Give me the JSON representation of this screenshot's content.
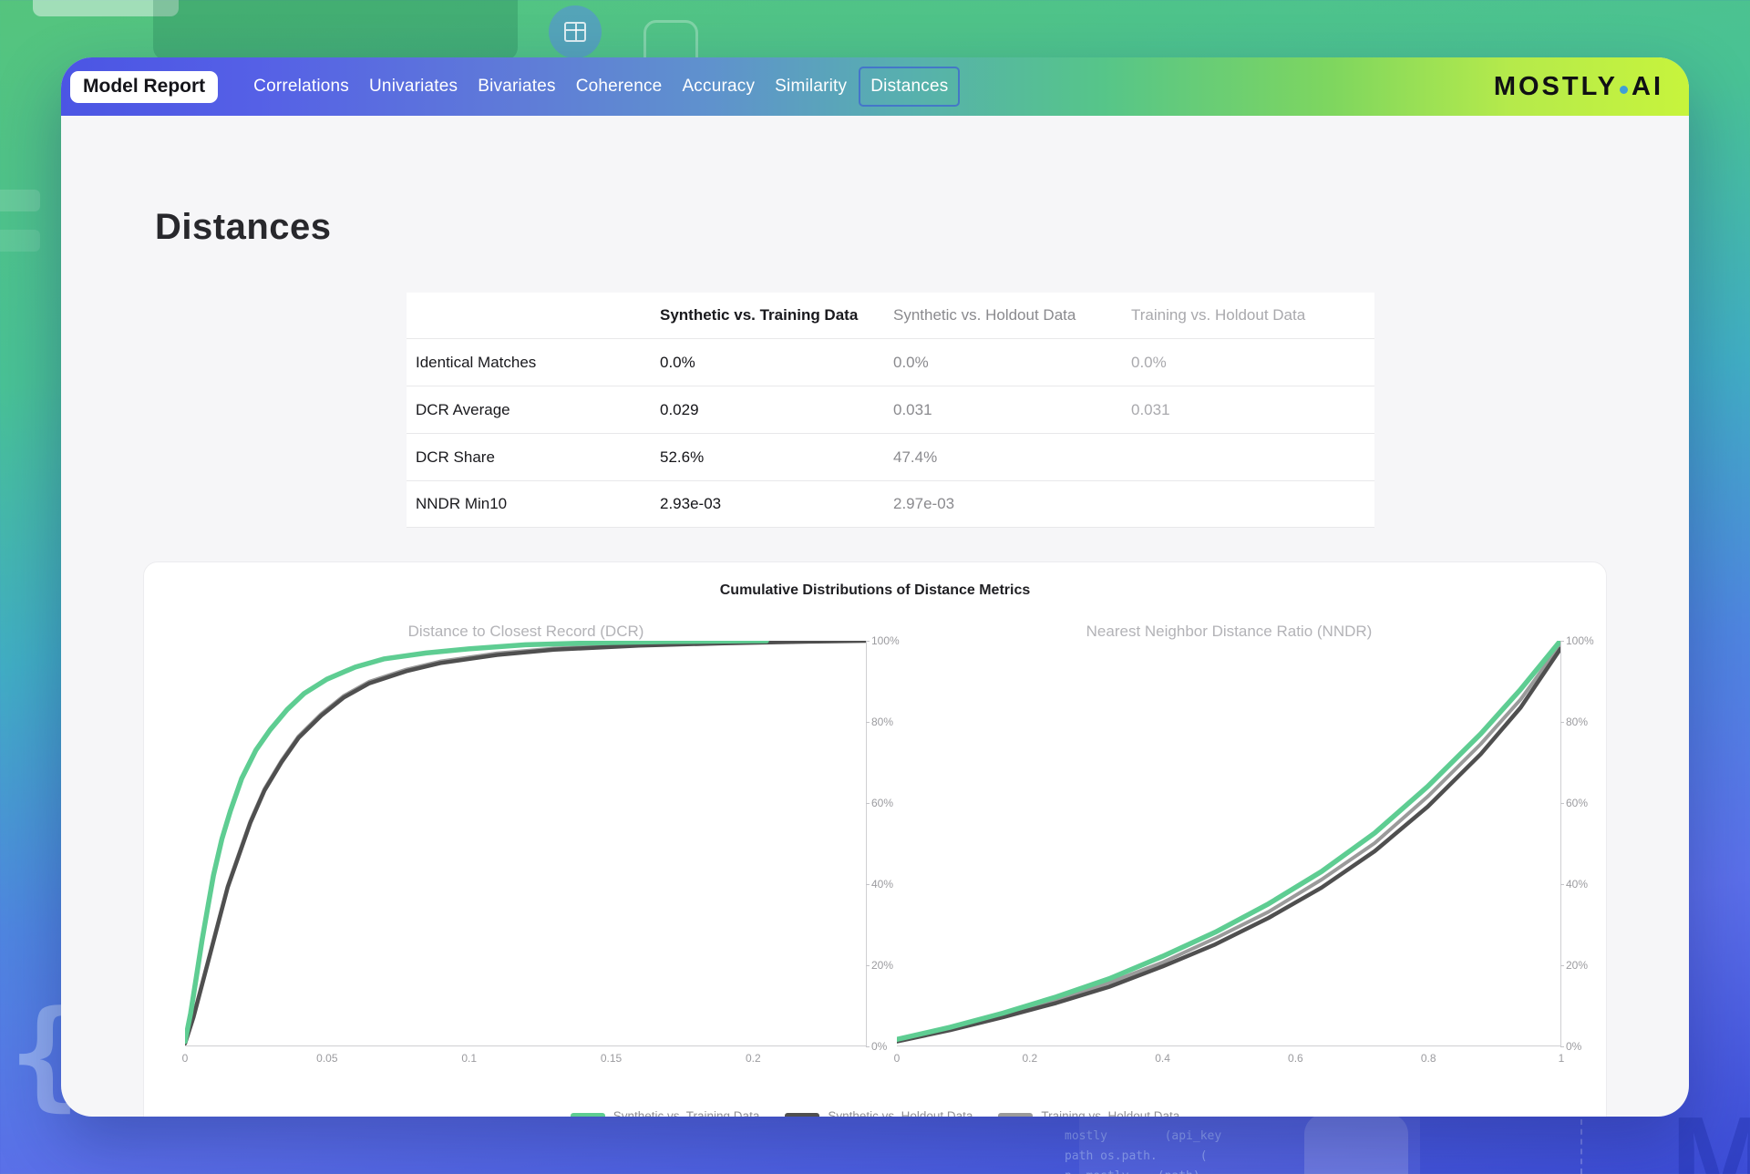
{
  "nav": {
    "badge": "Model Report",
    "tabs": [
      {
        "label": "Correlations",
        "active": false
      },
      {
        "label": "Univariates",
        "active": false
      },
      {
        "label": "Bivariates",
        "active": false
      },
      {
        "label": "Coherence",
        "active": false
      },
      {
        "label": "Accuracy",
        "active": false
      },
      {
        "label": "Similarity",
        "active": false
      },
      {
        "label": "Distances",
        "active": true
      }
    ],
    "active_tab_border": "#3e64d2",
    "logo": {
      "part1": "MOS",
      "part2": "TLY",
      "part3": "AI",
      "dot_color": "#3f9fd6"
    }
  },
  "page": {
    "title": "Distances"
  },
  "table": {
    "columns": [
      "",
      "Synthetic vs. Training Data",
      "Synthetic vs. Holdout Data",
      "Training vs. Holdout Data"
    ],
    "rows": [
      {
        "label": "Identical Matches",
        "synthetic_vs_training": "0.0%",
        "synthetic_vs_holdout": "0.0%",
        "training_vs_holdout": "0.0%"
      },
      {
        "label": "DCR Average",
        "synthetic_vs_training": "0.029",
        "synthetic_vs_holdout": "0.031",
        "training_vs_holdout": "0.031"
      },
      {
        "label": "DCR Share",
        "synthetic_vs_training": "52.6%",
        "synthetic_vs_holdout": "47.4%",
        "training_vs_holdout": ""
      },
      {
        "label": "NNDR Min10",
        "synthetic_vs_training": "2.93e-03",
        "synthetic_vs_holdout": "2.97e-03",
        "training_vs_holdout": ""
      }
    ]
  },
  "chart_card": {
    "title": "Cumulative Distributions of Distance Metrics"
  },
  "chart_data": [
    {
      "type": "line",
      "title": "Distance to Closest Record (DCR)",
      "xlim": [
        0,
        0.24
      ],
      "ylim": [
        0,
        100
      ],
      "x_ticks": [
        0,
        0.05,
        0.1,
        0.15,
        0.2
      ],
      "x_tick_labels": [
        "0",
        "0.05",
        "0.1",
        "0.15",
        "0.2"
      ],
      "y_ticks": [
        0,
        20,
        40,
        60,
        80,
        100
      ],
      "y_tick_labels": [
        "0%",
        "20%",
        "40%",
        "60%",
        "80%",
        "100%"
      ],
      "grid": false,
      "legend_position": "bottom",
      "series": [
        {
          "name": "Synthetic vs. Training Data",
          "color": "#5ecd92",
          "width": 5.5,
          "points": [
            [
              0,
              1
            ],
            [
              0.002,
              8
            ],
            [
              0.004,
              17
            ],
            [
              0.006,
              26
            ],
            [
              0.008,
              34
            ],
            [
              0.01,
              42
            ],
            [
              0.013,
              51
            ],
            [
              0.016,
              58
            ],
            [
              0.02,
              66
            ],
            [
              0.025,
              73
            ],
            [
              0.03,
              78
            ],
            [
              0.036,
              83
            ],
            [
              0.042,
              87
            ],
            [
              0.05,
              90.5
            ],
            [
              0.06,
              93.5
            ],
            [
              0.07,
              95.5
            ],
            [
              0.085,
              97
            ],
            [
              0.1,
              98
            ],
            [
              0.12,
              99
            ],
            [
              0.145,
              99.5
            ],
            [
              0.17,
              99.8
            ],
            [
              0.2,
              100
            ],
            [
              0.205,
              100
            ]
          ]
        },
        {
          "name": "Synthetic vs. Holdout Data",
          "color": "#4f4f4f",
          "width": 4.5,
          "points": [
            [
              0,
              0.5
            ],
            [
              0.003,
              7
            ],
            [
              0.006,
              15
            ],
            [
              0.009,
              23
            ],
            [
              0.012,
              31
            ],
            [
              0.015,
              39
            ],
            [
              0.019,
              47
            ],
            [
              0.023,
              55
            ],
            [
              0.028,
              63
            ],
            [
              0.034,
              70
            ],
            [
              0.04,
              76
            ],
            [
              0.048,
              81.5
            ],
            [
              0.056,
              86
            ],
            [
              0.065,
              89.5
            ],
            [
              0.078,
              92.5
            ],
            [
              0.09,
              94.5
            ],
            [
              0.11,
              96.5
            ],
            [
              0.13,
              97.8
            ],
            [
              0.16,
              98.8
            ],
            [
              0.19,
              99.4
            ],
            [
              0.22,
              99.8
            ],
            [
              0.24,
              100
            ]
          ]
        },
        {
          "name": "Training vs. Holdout Data",
          "color": "#9a9a9a",
          "width": 4,
          "points": [
            [
              0,
              0.8
            ],
            [
              0.003,
              7.3
            ],
            [
              0.006,
              15.4
            ],
            [
              0.009,
              23.4
            ],
            [
              0.012,
              31.4
            ],
            [
              0.015,
              39.4
            ],
            [
              0.019,
              47.4
            ],
            [
              0.023,
              55.4
            ],
            [
              0.028,
              63.4
            ],
            [
              0.034,
              70.4
            ],
            [
              0.04,
              76.4
            ],
            [
              0.048,
              81.9
            ],
            [
              0.056,
              86.4
            ],
            [
              0.065,
              89.9
            ],
            [
              0.078,
              92.9
            ],
            [
              0.09,
              94.9
            ],
            [
              0.11,
              96.9
            ],
            [
              0.13,
              98.1
            ],
            [
              0.16,
              99.1
            ],
            [
              0.19,
              99.6
            ],
            [
              0.22,
              99.9
            ],
            [
              0.24,
              100
            ]
          ]
        }
      ]
    },
    {
      "type": "line",
      "title": "Nearest Neighbor Distance Ratio (NNDR)",
      "xlim": [
        0,
        1
      ],
      "ylim": [
        0,
        100
      ],
      "x_ticks": [
        0,
        0.2,
        0.4,
        0.6,
        0.8,
        1
      ],
      "x_tick_labels": [
        "0",
        "0.2",
        "0.4",
        "0.6",
        "0.8",
        "1"
      ],
      "y_ticks": [
        0,
        20,
        40,
        60,
        80,
        100
      ],
      "y_tick_labels": [
        "0%",
        "20%",
        "40%",
        "60%",
        "80%",
        "100%"
      ],
      "grid": false,
      "legend_position": "bottom",
      "series": [
        {
          "name": "Synthetic vs. Training Data",
          "color": "#5ecd92",
          "width": 5.5,
          "points": [
            [
              0,
              1.5
            ],
            [
              0.08,
              4.5
            ],
            [
              0.16,
              8
            ],
            [
              0.24,
              12
            ],
            [
              0.32,
              16.5
            ],
            [
              0.4,
              22
            ],
            [
              0.48,
              28
            ],
            [
              0.56,
              35
            ],
            [
              0.64,
              43
            ],
            [
              0.72,
              52.5
            ],
            [
              0.8,
              64
            ],
            [
              0.88,
              77
            ],
            [
              0.94,
              88
            ],
            [
              1,
              100
            ]
          ]
        },
        {
          "name": "Synthetic vs. Holdout Data",
          "color": "#4f4f4f",
          "width": 4.5,
          "points": [
            [
              0,
              1
            ],
            [
              0.08,
              3.8
            ],
            [
              0.16,
              7
            ],
            [
              0.24,
              10.5
            ],
            [
              0.32,
              14.5
            ],
            [
              0.4,
              19.5
            ],
            [
              0.48,
              25
            ],
            [
              0.56,
              31.5
            ],
            [
              0.64,
              39
            ],
            [
              0.72,
              48
            ],
            [
              0.8,
              59
            ],
            [
              0.88,
              72
            ],
            [
              0.94,
              83.5
            ],
            [
              1,
              98
            ]
          ]
        },
        {
          "name": "Training vs. Holdout Data",
          "color": "#9a9a9a",
          "width": 4,
          "points": [
            [
              0,
              1.2
            ],
            [
              0.08,
              4.1
            ],
            [
              0.16,
              7.4
            ],
            [
              0.24,
              11.2
            ],
            [
              0.32,
              15.5
            ],
            [
              0.4,
              20.5
            ],
            [
              0.48,
              26.5
            ],
            [
              0.56,
              33
            ],
            [
              0.64,
              41
            ],
            [
              0.72,
              50
            ],
            [
              0.8,
              61.5
            ],
            [
              0.88,
              74.5
            ],
            [
              0.94,
              85.5
            ],
            [
              1,
              99
            ]
          ]
        }
      ]
    }
  ],
  "legend": [
    {
      "label": "Synthetic vs. Training Data",
      "color": "#5ecd92"
    },
    {
      "label": "Synthetic vs. Holdout Data",
      "color": "#4f4f4f"
    },
    {
      "label": "Training vs. Holdout Data",
      "color": "#9a9a9a"
    }
  ],
  "background_decor": {
    "brace": "{",
    "letter": "M",
    "code_lines": [
      "mostly        (api_key",
      "path os.path.      (",
      "p  mostly    (path)"
    ]
  },
  "colors": {
    "accent_green": "#5ecd92",
    "nav_gradient_start": "#4b55e4",
    "nav_gradient_end": "#c7f43c",
    "page_gradient_top": "#55c47d",
    "page_gradient_bottom": "#3c4cd6"
  }
}
